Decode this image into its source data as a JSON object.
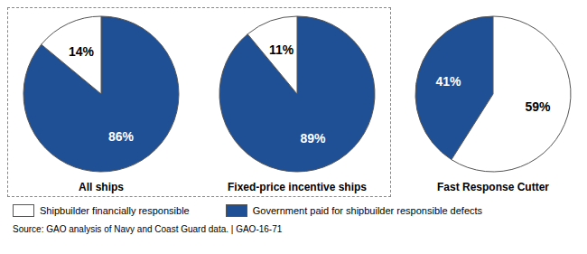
{
  "chart_data": [
    {
      "type": "pie",
      "title": "All ships",
      "categories": [
        "Government paid for shipbuilder responsible defects",
        "Shipbuilder financially responsible"
      ],
      "values": [
        86,
        14
      ],
      "value_labels": [
        "86%",
        "14%"
      ],
      "colors": [
        "#1F5096",
        "#FFFFFF"
      ],
      "data_labels": true
    },
    {
      "type": "pie",
      "title": "Fixed-price incentive ships",
      "categories": [
        "Government paid for shipbuilder responsible defects",
        "Shipbuilder financially responsible"
      ],
      "values": [
        89,
        11
      ],
      "value_labels": [
        "89%",
        "11%"
      ],
      "colors": [
        "#1F5096",
        "#FFFFFF"
      ],
      "data_labels": true
    },
    {
      "type": "pie",
      "title": "Fast Response Cutter",
      "categories": [
        "Government paid for shipbuilder responsible defects",
        "Shipbuilder financially responsible"
      ],
      "values": [
        41,
        59
      ],
      "value_labels": [
        "41%",
        "59%"
      ],
      "colors": [
        "#1F5096",
        "#FFFFFF"
      ],
      "data_labels": true
    }
  ],
  "annotations": [
    "Source: GAO analysis of Navy and Coast Guard data.  |  GAO-16-71"
  ]
}
